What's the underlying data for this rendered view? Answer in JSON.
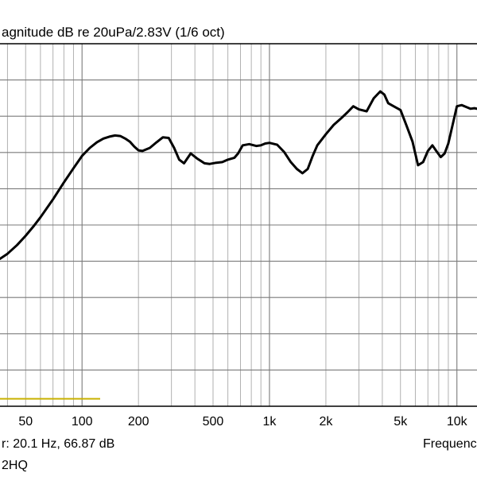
{
  "chart_data": {
    "type": "line",
    "title": "agnitude dB re 20uPa/2.83V (1/6 oct)",
    "x_scale": "log",
    "xlim": [
      36.5,
      12800
    ],
    "x_ticks": [
      {
        "value": 50,
        "label": "50"
      },
      {
        "value": 100,
        "label": "100"
      },
      {
        "value": 200,
        "label": "200"
      },
      {
        "value": 500,
        "label": "500"
      },
      {
        "value": 1000,
        "label": "1k"
      },
      {
        "value": 2000,
        "label": "2k"
      },
      {
        "value": 5000,
        "label": "5k"
      },
      {
        "value": 10000,
        "label": "10k"
      }
    ],
    "xlabel": "Frequenc",
    "grid": true,
    "series": [
      {
        "color": "#000000",
        "x": [
          36.5,
          40,
          45,
          50,
          55,
          60,
          70,
          80,
          90,
          100,
          110,
          120,
          130,
          140,
          150,
          160,
          170,
          180,
          190,
          200,
          210,
          230,
          250,
          270,
          290,
          310,
          330,
          350,
          380,
          410,
          450,
          480,
          520,
          560,
          600,
          650,
          680,
          720,
          780,
          850,
          900,
          950,
          1000,
          1100,
          1200,
          1300,
          1400,
          1500,
          1600,
          1700,
          1800,
          2000,
          2200,
          2400,
          2600,
          2800,
          3000,
          3300,
          3600,
          3900,
          4100,
          4300,
          4600,
          5000,
          5400,
          5800,
          6200,
          6600,
          7000,
          7400,
          7800,
          8200,
          8600,
          9000,
          9500,
          10000,
          10600,
          11200,
          11800,
          12400,
          12800
        ],
        "y": [
          13.6,
          14.4,
          15.8,
          17.3,
          18.8,
          20.3,
          23.2,
          25.9,
          28.2,
          30.2,
          31.5,
          32.4,
          33.0,
          33.3,
          33.5,
          33.4,
          33.0,
          32.5,
          31.7,
          31.1,
          31.0,
          31.5,
          32.4,
          33.2,
          33.1,
          31.5,
          29.6,
          29.0,
          30.6,
          29.8,
          29.0,
          28.9,
          29.1,
          29.2,
          29.6,
          29.9,
          30.6,
          31.9,
          32.1,
          31.8,
          31.9,
          32.2,
          32.3,
          32.0,
          30.8,
          29.2,
          28.1,
          27.4,
          28.1,
          30.2,
          31.9,
          33.7,
          35.2,
          36.2,
          37.2,
          38.2,
          37.7,
          37.4,
          39.5,
          40.6,
          40.1,
          38.7,
          38.2,
          37.6,
          35.0,
          32.5,
          28.7,
          29.2,
          31.0,
          31.9,
          30.9,
          30.0,
          30.6,
          32.2,
          35.3,
          38.2,
          38.4,
          38.1,
          37.8,
          37.9,
          37.8
        ]
      },
      {
        "color": "#c9b100",
        "x": [
          36.5,
          125
        ],
        "y": [
          -9.0,
          -9.0
        ]
      }
    ],
    "ylim": [
      -10.2,
      48.3
    ]
  },
  "footer": {
    "cursor_readout": "r: 20.1 Hz, 66.87 dB",
    "device_name": "2HQ"
  }
}
